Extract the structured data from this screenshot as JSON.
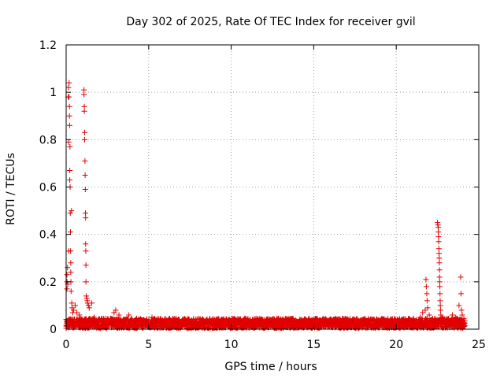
{
  "chart_data": {
    "type": "scatter",
    "title": "Day 302 of 2025, Rate Of TEC Index for receiver gvil",
    "xlabel": "GPS time / hours",
    "ylabel": "ROTI / TECUs",
    "xlim": [
      0,
      25
    ],
    "ylim": [
      0,
      1.2
    ],
    "x_ticks": [
      "0",
      "5",
      "10",
      "15",
      "20",
      "25"
    ],
    "y_ticks": [
      "0",
      "0.2",
      "0.4",
      "0.6",
      "0.8",
      "1",
      "1.2"
    ],
    "grid": true,
    "marker": "+",
    "color": "#e00000",
    "background_band": {
      "x_range": [
        0,
        24.15
      ],
      "y_range": [
        0,
        0.045
      ],
      "note": "dense continuous cluster of points"
    },
    "series": [
      {
        "points": [
          [
            0.05,
            0.17
          ],
          [
            0.05,
            0.2
          ],
          [
            0.05,
            0.23
          ],
          [
            0.08,
            0.26
          ],
          [
            0.1,
            0.19
          ],
          [
            0.12,
            0.98
          ],
          [
            0.14,
            1.02
          ],
          [
            0.15,
            0.79
          ],
          [
            0.16,
            0.33
          ],
          [
            0.18,
            0.98
          ],
          [
            0.18,
            1.04
          ],
          [
            0.2,
            0.94
          ],
          [
            0.2,
            0.9
          ],
          [
            0.21,
            0.86
          ],
          [
            0.22,
            0.67
          ],
          [
            0.22,
            0.63
          ],
          [
            0.23,
            0.77
          ],
          [
            0.24,
            0.6
          ],
          [
            0.25,
            0.49
          ],
          [
            0.26,
            0.41
          ],
          [
            0.27,
            0.33
          ],
          [
            0.28,
            0.28
          ],
          [
            0.28,
            0.24
          ],
          [
            0.29,
            0.2
          ],
          [
            0.3,
            0.16
          ],
          [
            0.32,
            0.5
          ],
          [
            0.34,
            0.11
          ],
          [
            0.36,
            0.09
          ],
          [
            0.4,
            0.07
          ],
          [
            0.45,
            0.08
          ],
          [
            0.55,
            0.1
          ],
          [
            0.65,
            0.07
          ],
          [
            0.8,
            0.06
          ],
          [
            1.08,
            1.01
          ],
          [
            1.08,
            0.99
          ],
          [
            1.1,
            0.94
          ],
          [
            1.1,
            0.92
          ],
          [
            1.12,
            0.83
          ],
          [
            1.12,
            0.8
          ],
          [
            1.14,
            0.71
          ],
          [
            1.15,
            0.65
          ],
          [
            1.16,
            0.59
          ],
          [
            1.17,
            0.49
          ],
          [
            1.18,
            0.47
          ],
          [
            1.18,
            0.36
          ],
          [
            1.19,
            0.33
          ],
          [
            1.2,
            0.27
          ],
          [
            1.2,
            0.2
          ],
          [
            1.22,
            0.14
          ],
          [
            1.25,
            0.13
          ],
          [
            1.28,
            0.12
          ],
          [
            1.3,
            0.11
          ],
          [
            1.35,
            0.1
          ],
          [
            1.4,
            0.09
          ],
          [
            1.55,
            0.11
          ],
          [
            1.7,
            0.05
          ],
          [
            2.9,
            0.07
          ],
          [
            3.0,
            0.08
          ],
          [
            3.2,
            0.06
          ],
          [
            3.8,
            0.06
          ],
          [
            5.2,
            0.05
          ],
          [
            21.45,
            0.05
          ],
          [
            21.6,
            0.07
          ],
          [
            21.75,
            0.08
          ],
          [
            21.8,
            0.21
          ],
          [
            21.82,
            0.18
          ],
          [
            21.85,
            0.15
          ],
          [
            21.87,
            0.12
          ],
          [
            21.9,
            0.09
          ],
          [
            22.0,
            0.06
          ],
          [
            22.5,
            0.45
          ],
          [
            22.52,
            0.44
          ],
          [
            22.54,
            0.43
          ],
          [
            22.55,
            0.41
          ],
          [
            22.56,
            0.39
          ],
          [
            22.57,
            0.37
          ],
          [
            22.58,
            0.34
          ],
          [
            22.59,
            0.32
          ],
          [
            22.6,
            0.3
          ],
          [
            22.61,
            0.28
          ],
          [
            22.62,
            0.25
          ],
          [
            22.62,
            0.22
          ],
          [
            22.63,
            0.2
          ],
          [
            22.64,
            0.18
          ],
          [
            22.65,
            0.15
          ],
          [
            22.66,
            0.12
          ],
          [
            22.67,
            0.1
          ],
          [
            22.68,
            0.08
          ],
          [
            22.7,
            0.06
          ],
          [
            22.8,
            0.05
          ],
          [
            23.4,
            0.06
          ],
          [
            23.6,
            0.05
          ],
          [
            23.8,
            0.1
          ],
          [
            23.9,
            0.22
          ],
          [
            23.92,
            0.15
          ],
          [
            23.95,
            0.08
          ],
          [
            24.0,
            0.06
          ]
        ]
      }
    ]
  }
}
